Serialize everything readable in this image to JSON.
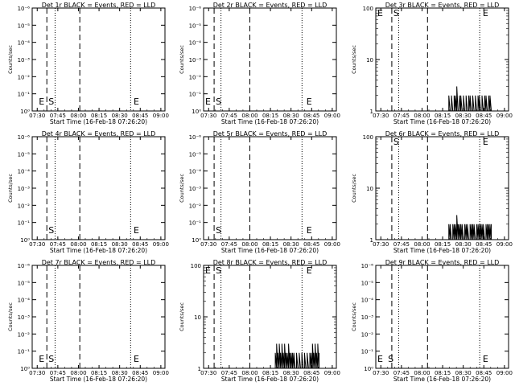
{
  "chart_data": [
    {
      "type": "line",
      "title": "Det 1r BLACK = Events, RED = LLD",
      "xlabel": "Start Time (16-Feb-18 07:26:20)",
      "ylabel": "Counts/sec",
      "x_ticks": [
        "07:30",
        "07:45",
        "08:00",
        "08:15",
        "08:30",
        "08:45",
        "09:00"
      ],
      "y_ticks": [
        "10⁰",
        "10⁻¹",
        "10⁻²",
        "10⁻³",
        "10⁻⁴",
        "10⁻⁵",
        "10⁻⁶"
      ],
      "y_scale": "log",
      "ylim": [
        "10⁰",
        "10⁻⁶"
      ],
      "markers": [
        {
          "label": "E",
          "time": "07:30"
        },
        {
          "label": "S",
          "time": "07:37"
        },
        {
          "label": "E",
          "time": "08:39"
        }
      ],
      "dashed_lines": [
        "07:37",
        "08:01"
      ],
      "dotted_lines": [
        "07:43",
        "08:38",
        "09:03"
      ],
      "series": []
    },
    {
      "type": "line",
      "title": "Det 2r BLACK = Events, RED = LLD",
      "xlabel": "Start Time (16-Feb-18 07:26:20)",
      "ylabel": "Counts/sec",
      "x_ticks": [
        "07:30",
        "07:45",
        "08:00",
        "08:15",
        "08:30",
        "08:45",
        "09:00"
      ],
      "y_ticks": [
        "10⁰",
        "10⁻¹",
        "10⁻²",
        "10⁻³",
        "10⁻⁴",
        "10⁻⁵",
        "10⁻⁶"
      ],
      "y_scale": "log",
      "ylim": [
        "10⁰",
        "10⁻⁶"
      ],
      "markers": [
        {
          "label": "E",
          "time": "07:26"
        },
        {
          "label": "S",
          "time": "07:34"
        },
        {
          "label": "E",
          "time": "08:40"
        }
      ],
      "dashed_lines": [
        "07:34",
        "08:00"
      ],
      "dotted_lines": [
        "07:39",
        "08:38",
        "09:03"
      ],
      "series": []
    },
    {
      "type": "line",
      "title": "Det 3r BLACK = Events, RED = LLD",
      "xlabel": "Start Time (16-Feb-18 07:26:20)",
      "ylabel": "Counts/sec",
      "x_ticks": [
        "07:30",
        "07:45",
        "08:00",
        "08:15",
        "08:30",
        "08:45",
        "09:00"
      ],
      "y_ticks": [
        "100",
        "10",
        "1"
      ],
      "y_scale": "log",
      "ylim": [
        1,
        100
      ],
      "markers": [
        {
          "label": "E",
          "time": "07:26"
        },
        {
          "label": "S",
          "time": "07:38"
        },
        {
          "label": "E",
          "time": "08:43"
        }
      ],
      "dashed_lines": [
        "07:38",
        "08:04"
      ],
      "dotted_lines": [
        "07:43",
        "08:42",
        "09:03"
      ],
      "series": [
        {
          "points": [
            [
              0.54,
              1
            ],
            [
              0.55,
              2
            ],
            [
              0.56,
              1
            ],
            [
              0.57,
              2
            ],
            [
              0.58,
              1
            ],
            [
              0.59,
              2
            ],
            [
              0.6,
              2
            ],
            [
              0.61,
              3
            ],
            [
              0.62,
              1
            ],
            [
              0.63,
              2
            ],
            [
              0.64,
              2
            ],
            [
              0.65,
              1
            ],
            [
              0.66,
              2
            ],
            [
              0.67,
              1
            ],
            [
              0.68,
              2
            ],
            [
              0.69,
              1
            ],
            [
              0.7,
              2
            ],
            [
              0.71,
              2
            ],
            [
              0.72,
              1
            ],
            [
              0.73,
              2
            ],
            [
              0.74,
              1
            ],
            [
              0.75,
              2
            ],
            [
              0.76,
              1
            ],
            [
              0.77,
              2
            ],
            [
              0.78,
              2
            ],
            [
              0.79,
              1
            ],
            [
              0.8,
              2
            ],
            [
              0.81,
              1
            ],
            [
              0.82,
              2
            ],
            [
              0.83,
              2
            ],
            [
              0.84,
              1
            ],
            [
              0.85,
              2
            ],
            [
              0.86,
              2
            ],
            [
              0.87,
              1
            ]
          ]
        }
      ]
    },
    {
      "type": "line",
      "title": "Det 4r BLACK = Events, RED = LLD",
      "xlabel": "Start Time (16-Feb-18 07:26:20)",
      "ylabel": "Counts/sec",
      "x_ticks": [
        "07:30",
        "07:45",
        "08:00",
        "08:15",
        "08:30",
        "08:45",
        "09:00"
      ],
      "y_ticks": [
        "10⁰",
        "10⁻¹",
        "10⁻²",
        "10⁻³",
        "10⁻⁴",
        "10⁻⁵",
        "10⁻⁶"
      ],
      "y_scale": "log",
      "ylim": [
        "10⁰",
        "10⁻⁶"
      ],
      "markers": [
        {
          "label": "S",
          "time": "07:37"
        },
        {
          "label": "E",
          "time": "08:39"
        }
      ],
      "dashed_lines": [
        "07:37",
        "08:01"
      ],
      "dotted_lines": [
        "07:43",
        "08:38",
        "09:03"
      ],
      "series": []
    },
    {
      "type": "line",
      "title": "Det 5r BLACK = Events, RED = LLD",
      "xlabel": "Start Time (16-Feb-18 07:26:20)",
      "ylabel": "Counts/sec",
      "x_ticks": [
        "07:30",
        "07:45",
        "08:00",
        "08:15",
        "08:30",
        "08:45",
        "09:00"
      ],
      "y_ticks": [
        "10⁰",
        "10⁻¹",
        "10⁻²",
        "10⁻³",
        "10⁻⁴",
        "10⁻⁵",
        "10⁻⁶"
      ],
      "y_scale": "log",
      "ylim": [
        "10⁰",
        "10⁻⁶"
      ],
      "markers": [
        {
          "label": "S",
          "time": "07:34"
        },
        {
          "label": "E",
          "time": "08:40"
        }
      ],
      "dashed_lines": [
        "07:34",
        "08:00"
      ],
      "dotted_lines": [
        "07:39",
        "08:38",
        "09:03"
      ],
      "series": []
    },
    {
      "type": "line",
      "title": "Det 6r BLACK = Events, RED = LLD",
      "xlabel": "Start Time (16-Feb-18 07:26:20)",
      "ylabel": "Counts/sec",
      "x_ticks": [
        "07:30",
        "07:45",
        "08:00",
        "08:15",
        "08:30",
        "08:45",
        "09:00"
      ],
      "y_ticks": [
        "100",
        "10",
        "1"
      ],
      "y_scale": "log",
      "ylim": [
        1,
        100
      ],
      "markers": [
        {
          "label": "S",
          "time": "07:38"
        },
        {
          "label": "E",
          "time": "08:43"
        }
      ],
      "dashed_lines": [
        "07:38",
        "08:04"
      ],
      "dotted_lines": [
        "07:43",
        "08:42",
        "09:03"
      ],
      "series": [
        {
          "points": [
            [
              0.54,
              1
            ],
            [
              0.55,
              2
            ],
            [
              0.56,
              2
            ],
            [
              0.57,
              1
            ],
            [
              0.58,
              2
            ],
            [
              0.59,
              2
            ],
            [
              0.6,
              2
            ],
            [
              0.61,
              3
            ],
            [
              0.62,
              2
            ],
            [
              0.63,
              2
            ],
            [
              0.64,
              2
            ],
            [
              0.65,
              2
            ],
            [
              0.66,
              1
            ],
            [
              0.67,
              2
            ],
            [
              0.68,
              2
            ],
            [
              0.69,
              2
            ],
            [
              0.7,
              1
            ],
            [
              0.71,
              2
            ],
            [
              0.72,
              2
            ],
            [
              0.73,
              2
            ],
            [
              0.74,
              2
            ],
            [
              0.75,
              1
            ],
            [
              0.76,
              2
            ],
            [
              0.77,
              2
            ],
            [
              0.78,
              2
            ],
            [
              0.79,
              2
            ],
            [
              0.8,
              2
            ],
            [
              0.81,
              2
            ],
            [
              0.82,
              1
            ],
            [
              0.83,
              2
            ],
            [
              0.84,
              2
            ],
            [
              0.85,
              2
            ],
            [
              0.86,
              2
            ],
            [
              0.87,
              2
            ]
          ]
        }
      ]
    },
    {
      "type": "line",
      "title": "Det 7r BLACK = Events, RED = LLD",
      "xlabel": "Start Time (16-Feb-18 07:26:20)",
      "ylabel": "Counts/sec",
      "x_ticks": [
        "07:30",
        "07:45",
        "08:00",
        "08:15",
        "08:30",
        "08:45",
        "09:00"
      ],
      "y_ticks": [
        "10⁰",
        "10⁻¹",
        "10⁻²",
        "10⁻³",
        "10⁻⁴",
        "10⁻⁵",
        "10⁻⁶"
      ],
      "y_scale": "log",
      "ylim": [
        "10⁰",
        "10⁻⁶"
      ],
      "markers": [
        {
          "label": "E",
          "time": "07:30"
        },
        {
          "label": "S",
          "time": "07:37"
        },
        {
          "label": "E",
          "time": "08:39"
        }
      ],
      "dashed_lines": [
        "07:37",
        "08:01"
      ],
      "dotted_lines": [
        "07:43",
        "08:38",
        "09:03"
      ],
      "series": []
    },
    {
      "type": "line",
      "title": "Det 8r BLACK = Events, RED = LLD",
      "xlabel": "Start Time (16-Feb-18 07:26:20)",
      "ylabel": "Counts/sec",
      "x_ticks": [
        "07:30",
        "07:45",
        "08:00",
        "08:15",
        "08:30",
        "08:45",
        "09:00"
      ],
      "y_ticks": [
        "100",
        "10",
        "1"
      ],
      "y_scale": "log",
      "ylim": [
        1,
        100
      ],
      "markers": [
        {
          "label": "E",
          "time": "07:26"
        },
        {
          "label": "S",
          "time": "07:34"
        },
        {
          "label": "E",
          "time": "08:40"
        }
      ],
      "dashed_lines": [
        "07:34",
        "08:00"
      ],
      "dotted_lines": [
        "07:39",
        "08:38",
        "09:03"
      ],
      "series": [
        {
          "points": [
            [
              0.53,
              1
            ],
            [
              0.54,
              2
            ],
            [
              0.55,
              3
            ],
            [
              0.56,
              2
            ],
            [
              0.57,
              3
            ],
            [
              0.58,
              2
            ],
            [
              0.59,
              3
            ],
            [
              0.6,
              2
            ],
            [
              0.61,
              3
            ],
            [
              0.62,
              2
            ],
            [
              0.63,
              2
            ],
            [
              0.64,
              3
            ],
            [
              0.65,
              2
            ],
            [
              0.66,
              2
            ],
            [
              0.67,
              2
            ],
            [
              0.68,
              2
            ],
            [
              0.69,
              1
            ],
            [
              0.7,
              2
            ],
            [
              0.71,
              1
            ],
            [
              0.72,
              2
            ],
            [
              0.73,
              1
            ],
            [
              0.74,
              2
            ],
            [
              0.75,
              1
            ],
            [
              0.76,
              2
            ],
            [
              0.77,
              1
            ],
            [
              0.78,
              2
            ],
            [
              0.79,
              1
            ],
            [
              0.8,
              2
            ],
            [
              0.81,
              2
            ],
            [
              0.82,
              3
            ],
            [
              0.83,
              2
            ],
            [
              0.84,
              3
            ],
            [
              0.85,
              2
            ],
            [
              0.86,
              3
            ],
            [
              0.87,
              2
            ]
          ]
        }
      ]
    },
    {
      "type": "line",
      "title": "Det 9r BLACK = Events, RED = LLD",
      "xlabel": "Start Time (16-Feb-18 07:26:20)",
      "ylabel": "Counts/sec",
      "x_ticks": [
        "07:30",
        "07:45",
        "08:00",
        "08:15",
        "08:30",
        "08:45",
        "09:00"
      ],
      "y_ticks": [
        "10⁰",
        "10⁻¹",
        "10⁻²",
        "10⁻³",
        "10⁻⁴",
        "10⁻⁵",
        "10⁻⁶"
      ],
      "y_scale": "log",
      "ylim": [
        "10⁰",
        "10⁻⁶"
      ],
      "markers": [
        {
          "label": "E",
          "time": "07:26"
        },
        {
          "label": "S",
          "time": "07:34"
        },
        {
          "label": "E",
          "time": "08:43"
        }
      ],
      "dashed_lines": [
        "07:38",
        "08:04"
      ],
      "dotted_lines": [
        "07:43",
        "08:42",
        "09:03"
      ],
      "series": []
    }
  ]
}
